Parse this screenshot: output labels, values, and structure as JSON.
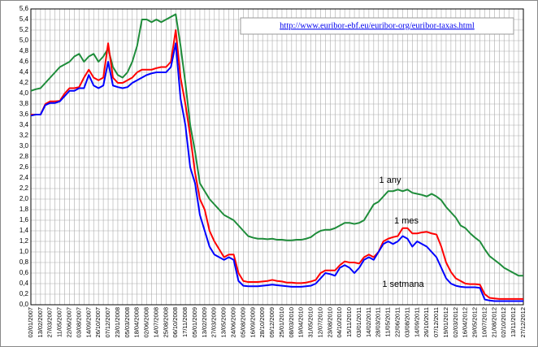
{
  "chart_data": {
    "type": "line",
    "categories": [
      "02/01/2007",
      null,
      "13/02/2007",
      null,
      "27/03/2007",
      null,
      "11/05/2007",
      null,
      "22/06/2007",
      null,
      "03/08/2007",
      null,
      "14/09/2007",
      null,
      "26/10/2007",
      null,
      "07/12/2007",
      null,
      "23/01/2008",
      null,
      "05/03/2008",
      null,
      "18/04/2008",
      null,
      "02/06/2008",
      null,
      "14/07/2008",
      null,
      "25/08/2008",
      null,
      "06/10/2008",
      null,
      "17/11/2008",
      null,
      "05/01/2009",
      null,
      "13/02/2009",
      null,
      "27/03/2009",
      null,
      "13/05/2009",
      null,
      "24/06/2009",
      null,
      "05/08/2009",
      null,
      "16/09/2009",
      null,
      "28/10/2009",
      null,
      "09/12/2009",
      null,
      "25/01/2010",
      null,
      "08/03/2010",
      null,
      "19/04/2010",
      null,
      "31/05/2010",
      null,
      "12/07/2010",
      null,
      "23/08/2010",
      null,
      "04/10/2010",
      null,
      "15/11/2010",
      null,
      "03/01/2011",
      null,
      "14/02/2011",
      null,
      "28/03/2011",
      null,
      "11/05/2011",
      null,
      "22/06/2011",
      null,
      "03/08/2011",
      null,
      "14/09/2011",
      null,
      "26/10/2011",
      null,
      "07/12/2011",
      null,
      "19/01/2012",
      null,
      "02/03/2012",
      null,
      "16/04/2012",
      null,
      "29/05/2012",
      null,
      "10/07/2012",
      null,
      "21/08/2012",
      null,
      "02/10/2012",
      null,
      "13/11/2012",
      null,
      "27/12/2012"
    ],
    "series": [
      {
        "name": "1 any",
        "color": "#1e8c3a",
        "values": [
          4.05,
          4.08,
          4.1,
          4.2,
          4.3,
          4.4,
          4.5,
          4.55,
          4.6,
          4.7,
          4.75,
          4.6,
          4.7,
          4.75,
          4.6,
          4.7,
          4.85,
          4.5,
          4.35,
          4.3,
          4.4,
          4.6,
          4.9,
          5.4,
          5.4,
          5.35,
          5.4,
          5.35,
          5.4,
          5.45,
          5.5,
          4.9,
          4.2,
          3.4,
          2.9,
          2.3,
          2.15,
          2.0,
          1.9,
          1.8,
          1.7,
          1.65,
          1.6,
          1.5,
          1.4,
          1.3,
          1.27,
          1.25,
          1.25,
          1.24,
          1.25,
          1.23,
          1.23,
          1.22,
          1.22,
          1.23,
          1.23,
          1.25,
          1.28,
          1.35,
          1.4,
          1.42,
          1.42,
          1.45,
          1.5,
          1.55,
          1.55,
          1.53,
          1.55,
          1.6,
          1.75,
          1.9,
          1.95,
          2.05,
          2.15,
          2.15,
          2.18,
          2.15,
          2.18,
          2.12,
          2.1,
          2.08,
          2.05,
          2.1,
          2.05,
          1.98,
          1.85,
          1.75,
          1.65,
          1.5,
          1.45,
          1.35,
          1.27,
          1.2,
          1.05,
          0.92,
          0.85,
          0.78,
          0.7,
          0.65,
          0.6,
          0.55,
          0.55
        ]
      },
      {
        "name": "1 mes",
        "color": "#ff0000",
        "values": [
          3.6,
          3.6,
          3.6,
          3.8,
          3.85,
          3.85,
          3.86,
          4.0,
          4.1,
          4.1,
          4.12,
          4.3,
          4.45,
          4.3,
          4.25,
          4.3,
          4.95,
          4.3,
          4.2,
          4.2,
          4.25,
          4.3,
          4.4,
          4.45,
          4.45,
          4.45,
          4.48,
          4.5,
          4.5,
          4.6,
          5.2,
          4.3,
          3.8,
          3.2,
          2.5,
          2.0,
          1.8,
          1.4,
          1.2,
          1.05,
          0.9,
          0.95,
          0.95,
          0.6,
          0.45,
          0.43,
          0.43,
          0.43,
          0.44,
          0.45,
          0.47,
          0.45,
          0.44,
          0.42,
          0.42,
          0.41,
          0.41,
          0.42,
          0.44,
          0.47,
          0.6,
          0.65,
          0.65,
          0.65,
          0.75,
          0.82,
          0.8,
          0.8,
          0.78,
          0.9,
          0.95,
          0.9,
          1.0,
          1.2,
          1.25,
          1.28,
          1.3,
          1.45,
          1.45,
          1.35,
          1.35,
          1.37,
          1.38,
          1.35,
          1.33,
          1.1,
          0.8,
          0.62,
          0.5,
          0.45,
          0.4,
          0.39,
          0.39,
          0.38,
          0.2,
          0.13,
          0.12,
          0.11,
          0.11,
          0.11,
          0.11,
          0.11,
          0.11
        ]
      },
      {
        "name": "1 setmana",
        "color": "#0000ff",
        "values": [
          3.58,
          3.6,
          3.6,
          3.78,
          3.82,
          3.82,
          3.85,
          3.95,
          4.05,
          4.05,
          4.1,
          4.1,
          4.35,
          4.15,
          4.1,
          4.15,
          4.6,
          4.15,
          4.12,
          4.1,
          4.12,
          4.2,
          4.25,
          4.3,
          4.35,
          4.38,
          4.4,
          4.4,
          4.4,
          4.5,
          4.95,
          3.9,
          3.4,
          2.6,
          2.3,
          1.7,
          1.4,
          1.1,
          0.95,
          0.9,
          0.85,
          0.9,
          0.85,
          0.45,
          0.36,
          0.35,
          0.35,
          0.35,
          0.36,
          0.37,
          0.38,
          0.37,
          0.36,
          0.35,
          0.34,
          0.34,
          0.34,
          0.35,
          0.36,
          0.4,
          0.5,
          0.6,
          0.58,
          0.55,
          0.7,
          0.75,
          0.7,
          0.6,
          0.7,
          0.85,
          0.9,
          0.85,
          1.0,
          1.15,
          1.2,
          1.15,
          1.2,
          1.3,
          1.25,
          1.1,
          1.2,
          1.15,
          1.1,
          1.0,
          0.9,
          0.7,
          0.5,
          0.4,
          0.36,
          0.34,
          0.33,
          0.33,
          0.33,
          0.32,
          0.1,
          0.08,
          0.07,
          0.07,
          0.07,
          0.07,
          0.07,
          0.07,
          0.07
        ]
      }
    ],
    "annotations": [
      "http://www.euribor-ebf.eu/euribor-org/euribor-taxas.html"
    ],
    "ylim": [
      0,
      5.6
    ],
    "yticks": [
      {
        "value": 0,
        "label": "0,0"
      },
      {
        "value": 0.2,
        "label": "0,2"
      },
      {
        "value": 0.4,
        "label": "0,4"
      },
      {
        "value": 0.6,
        "label": "0,6"
      },
      {
        "value": 0.8,
        "label": "0,8"
      },
      {
        "value": 1.0,
        "label": "1,0"
      },
      {
        "value": 1.2,
        "label": "1,2"
      },
      {
        "value": 1.4,
        "label": "1,4"
      },
      {
        "value": 1.6,
        "label": "1,6"
      },
      {
        "value": 1.8,
        "label": "1,8"
      },
      {
        "value": 2.0,
        "label": "2,0"
      },
      {
        "value": 2.2,
        "label": "2,2"
      },
      {
        "value": 2.4,
        "label": "2,4"
      },
      {
        "value": 2.6,
        "label": "2,6"
      },
      {
        "value": 2.8,
        "label": "2,8"
      },
      {
        "value": 3.0,
        "label": "3,0"
      },
      {
        "value": 3.2,
        "label": "3,2"
      },
      {
        "value": 3.4,
        "label": "3,4"
      },
      {
        "value": 3.6,
        "label": "3,6"
      },
      {
        "value": 3.8,
        "label": "3,8"
      },
      {
        "value": 4.0,
        "label": "4,0"
      },
      {
        "value": 4.2,
        "label": "4,2"
      },
      {
        "value": 4.4,
        "label": "4,4"
      },
      {
        "value": 4.6,
        "label": "4,6"
      },
      {
        "value": 4.8,
        "label": "4,8"
      },
      {
        "value": 5.0,
        "label": "5,0"
      },
      {
        "value": 5.2,
        "label": "5,2"
      },
      {
        "value": 5.4,
        "label": "5,4"
      },
      {
        "value": 5.6,
        "label": "5,6"
      }
    ],
    "grid": true
  }
}
